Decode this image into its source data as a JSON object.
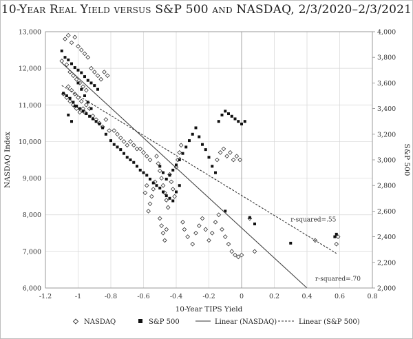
{
  "chart_data": {
    "type": "scatter",
    "title": "10-Year Real Yield versus S&P 500 and NASDAQ, 2/3/2020–2/3/2021",
    "xlabel": "10-Year TIPS Yield",
    "ylabel_left": "NASDAQ Index",
    "ylabel_right": "S&P 500",
    "xlim": [
      -1.2,
      0.8
    ],
    "ylim_left": [
      6000,
      13000
    ],
    "ylim_right": [
      2000,
      4000
    ],
    "x_ticks": [
      "-1.2",
      "-1",
      "-0.8",
      "-0.6",
      "-0.4",
      "-0.2",
      "0",
      "0.2",
      "0.4",
      "0.6",
      "0.8"
    ],
    "y_ticks_left": [
      "6,000",
      "7,000",
      "8,000",
      "9,000",
      "10,000",
      "11,000",
      "12,000",
      "13,000"
    ],
    "y_ticks_right": [
      "2,000",
      "2,200",
      "2,400",
      "2,600",
      "2,800",
      "3,000",
      "3,200",
      "3,400",
      "3,600",
      "3,800",
      "4,000"
    ],
    "series": [
      {
        "name": "NASDAQ",
        "axis": "left",
        "marker": "open-diamond",
        "points": [
          [
            -1.08,
            12.8
          ],
          [
            -1.06,
            12.9
          ],
          [
            -1.04,
            12.7
          ],
          [
            -1.02,
            12.85
          ],
          [
            -1.0,
            12.6
          ],
          [
            -0.98,
            12.5
          ],
          [
            -0.96,
            12.4
          ],
          [
            -0.94,
            12.3
          ],
          [
            -1.1,
            12.2
          ],
          [
            -1.07,
            12.1
          ],
          [
            -1.05,
            11.9
          ],
          [
            -1.03,
            11.8
          ],
          [
            -1.01,
            11.7
          ],
          [
            -0.99,
            11.6
          ],
          [
            -0.97,
            11.5
          ],
          [
            -0.95,
            11.4
          ],
          [
            -0.92,
            12.0
          ],
          [
            -0.9,
            11.9
          ],
          [
            -0.88,
            11.8
          ],
          [
            -0.86,
            11.7
          ],
          [
            -0.84,
            11.9
          ],
          [
            -0.82,
            11.8
          ],
          [
            -1.09,
            11.3
          ],
          [
            -1.07,
            11.2
          ],
          [
            -1.05,
            11.1
          ],
          [
            -1.03,
            11.0
          ],
          [
            -1.01,
            10.9
          ],
          [
            -0.99,
            10.8
          ],
          [
            -0.97,
            10.9
          ],
          [
            -0.95,
            11.0
          ],
          [
            -0.93,
            10.9
          ],
          [
            -0.91,
            10.7
          ],
          [
            -0.89,
            10.6
          ],
          [
            -0.87,
            10.5
          ],
          [
            -0.85,
            10.4
          ],
          [
            -0.83,
            10.6
          ],
          [
            -0.81,
            10.3
          ],
          [
            -1.06,
            11.5
          ],
          [
            -1.04,
            11.4
          ],
          [
            -1.02,
            11.3
          ],
          [
            -1.0,
            11.2
          ],
          [
            -0.98,
            11.1
          ],
          [
            -0.96,
            10.8
          ],
          [
            -0.78,
            10.3
          ],
          [
            -0.76,
            10.2
          ],
          [
            -0.74,
            10.1
          ],
          [
            -0.72,
            10.0
          ],
          [
            -0.7,
            9.9
          ],
          [
            -0.68,
            10.0
          ],
          [
            -0.66,
            9.9
          ],
          [
            -0.64,
            9.8
          ],
          [
            -0.62,
            9.8
          ],
          [
            -0.6,
            9.7
          ],
          [
            -0.58,
            9.6
          ],
          [
            -0.56,
            9.5
          ],
          [
            -0.52,
            9.6
          ],
          [
            -0.51,
            9.4
          ],
          [
            -0.5,
            9.2
          ],
          [
            -0.49,
            9.0
          ],
          [
            -0.48,
            8.8
          ],
          [
            -0.47,
            8.6
          ],
          [
            -0.46,
            8.4
          ],
          [
            -0.45,
            8.2
          ],
          [
            -0.53,
            8.9
          ],
          [
            -0.54,
            8.7
          ],
          [
            -0.55,
            8.5
          ],
          [
            -0.56,
            8.3
          ],
          [
            -0.57,
            8.1
          ],
          [
            -0.58,
            8.8
          ],
          [
            -0.59,
            8.6
          ],
          [
            -0.44,
            9.1
          ],
          [
            -0.43,
            8.9
          ],
          [
            -0.42,
            8.7
          ],
          [
            -0.41,
            8.5
          ],
          [
            -0.4,
            9.3
          ],
          [
            -0.39,
            9.5
          ],
          [
            -0.38,
            9.7
          ],
          [
            -0.37,
            9.9
          ],
          [
            -0.5,
            7.9
          ],
          [
            -0.49,
            7.7
          ],
          [
            -0.48,
            7.5
          ],
          [
            -0.47,
            7.3
          ],
          [
            -0.46,
            7.6
          ],
          [
            -0.36,
            7.8
          ],
          [
            -0.35,
            7.6
          ],
          [
            -0.33,
            7.4
          ],
          [
            -0.3,
            7.2
          ],
          [
            -0.28,
            7.5
          ],
          [
            -0.26,
            7.7
          ],
          [
            -0.24,
            7.9
          ],
          [
            -0.22,
            7.6
          ],
          [
            -0.2,
            7.3
          ],
          [
            -0.18,
            7.5
          ],
          [
            -0.16,
            7.8
          ],
          [
            -0.14,
            8.0
          ],
          [
            -0.12,
            7.6
          ],
          [
            -0.1,
            7.4
          ],
          [
            -0.08,
            7.2
          ],
          [
            -0.06,
            7.0
          ],
          [
            -0.04,
            6.9
          ],
          [
            -0.02,
            6.85
          ],
          [
            0.0,
            6.9
          ],
          [
            -0.15,
            9.5
          ],
          [
            -0.13,
            9.7
          ],
          [
            -0.11,
            9.8
          ],
          [
            -0.09,
            9.6
          ],
          [
            -0.07,
            9.7
          ],
          [
            -0.05,
            9.5
          ],
          [
            -0.03,
            9.6
          ],
          [
            -0.01,
            9.5
          ],
          [
            0.05,
            7.9
          ],
          [
            0.08,
            7.0
          ],
          [
            0.45,
            7.3
          ],
          [
            0.58,
            7.2
          ],
          [
            0.59,
            7.4
          ]
        ]
      },
      {
        "name": "S&P 500",
        "axis": "right",
        "marker": "filled-square",
        "points": [
          [
            -1.1,
            3.85
          ],
          [
            -1.08,
            3.8
          ],
          [
            -1.06,
            3.78
          ],
          [
            -1.04,
            3.75
          ],
          [
            -1.02,
            3.72
          ],
          [
            -1.0,
            3.7
          ],
          [
            -0.98,
            3.68
          ],
          [
            -0.96,
            3.65
          ],
          [
            -0.94,
            3.62
          ],
          [
            -0.92,
            3.6
          ],
          [
            -0.9,
            3.58
          ],
          [
            -0.88,
            3.55
          ],
          [
            -1.09,
            3.52
          ],
          [
            -1.07,
            3.5
          ],
          [
            -1.05,
            3.48
          ],
          [
            -1.03,
            3.45
          ],
          [
            -1.01,
            3.42
          ],
          [
            -0.99,
            3.4
          ],
          [
            -0.97,
            3.38
          ],
          [
            -0.95,
            3.36
          ],
          [
            -0.93,
            3.34
          ],
          [
            -0.91,
            3.32
          ],
          [
            -0.89,
            3.3
          ],
          [
            -0.87,
            3.28
          ],
          [
            -1.0,
            3.6
          ],
          [
            -0.98,
            3.55
          ],
          [
            -0.96,
            3.5
          ],
          [
            -0.94,
            3.45
          ],
          [
            -0.92,
            3.4
          ],
          [
            -1.06,
            3.35
          ],
          [
            -1.04,
            3.3
          ],
          [
            -1.02,
            3.42
          ],
          [
            -0.85,
            3.25
          ],
          [
            -0.83,
            3.2
          ],
          [
            -0.8,
            3.15
          ],
          [
            -0.78,
            3.12
          ],
          [
            -0.76,
            3.1
          ],
          [
            -0.74,
            3.08
          ],
          [
            -0.72,
            3.05
          ],
          [
            -0.7,
            3.02
          ],
          [
            -0.68,
            3.0
          ],
          [
            -0.66,
            2.98
          ],
          [
            -0.64,
            2.95
          ],
          [
            -0.62,
            2.92
          ],
          [
            -0.6,
            2.9
          ],
          [
            -0.58,
            2.88
          ],
          [
            -0.56,
            2.85
          ],
          [
            -0.54,
            2.82
          ],
          [
            -0.52,
            2.8
          ],
          [
            -0.5,
            2.78
          ],
          [
            -0.48,
            2.75
          ],
          [
            -0.46,
            2.72
          ],
          [
            -0.44,
            2.7
          ],
          [
            -0.42,
            2.68
          ],
          [
            -0.4,
            2.75
          ],
          [
            -0.38,
            2.8
          ],
          [
            -0.5,
            2.95
          ],
          [
            -0.48,
            2.9
          ],
          [
            -0.46,
            2.85
          ],
          [
            -0.44,
            2.88
          ],
          [
            -0.42,
            2.92
          ],
          [
            -0.4,
            2.96
          ],
          [
            -0.38,
            3.0
          ],
          [
            -0.36,
            3.05
          ],
          [
            -0.34,
            3.1
          ],
          [
            -0.32,
            3.15
          ],
          [
            -0.3,
            3.2
          ],
          [
            -0.28,
            3.25
          ],
          [
            -0.26,
            3.18
          ],
          [
            -0.24,
            3.12
          ],
          [
            -0.22,
            3.08
          ],
          [
            -0.2,
            3.02
          ],
          [
            -0.18,
            2.95
          ],
          [
            -0.16,
            2.9
          ],
          [
            -0.14,
            3.3
          ],
          [
            -0.12,
            3.35
          ],
          [
            -0.1,
            3.38
          ],
          [
            -0.08,
            3.36
          ],
          [
            -0.06,
            3.34
          ],
          [
            -0.04,
            3.32
          ],
          [
            -0.02,
            3.3
          ],
          [
            0.0,
            3.28
          ],
          [
            0.02,
            3.3
          ],
          [
            -0.1,
            2.6
          ],
          [
            0.05,
            2.55
          ],
          [
            0.08,
            2.5
          ],
          [
            0.3,
            2.35
          ],
          [
            0.57,
            2.4
          ],
          [
            0.58,
            2.42
          ]
        ]
      }
    ],
    "trendlines": [
      {
        "name": "Linear (NASDAQ)",
        "style": "solid",
        "from": [
          -1.1,
          12.15
        ],
        "to": [
          0.4,
          6.0
        ],
        "label": "r-squared=.70"
      },
      {
        "name": "Linear (S&P 500)",
        "style": "dashed",
        "from": [
          -1.1,
          3.58
        ],
        "to": [
          0.58,
          2.27
        ],
        "label": "r-squared=.55"
      }
    ],
    "legend": [
      "NASDAQ",
      "S&P 500",
      "Linear (NASDAQ)",
      "Linear (S&P 500)"
    ]
  }
}
